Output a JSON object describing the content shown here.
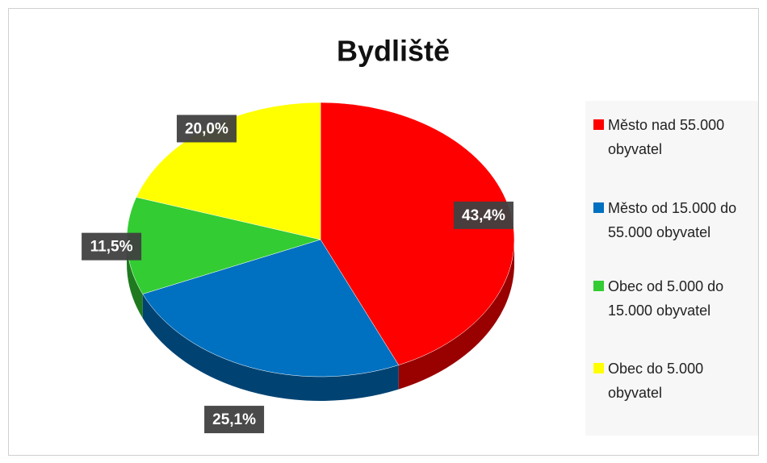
{
  "chart_data": {
    "type": "pie",
    "title": "Bydliště",
    "categories": [
      "Město nad 55.000 obyvatel",
      "Město od 15.000 do 55.000 obyvatel",
      "Obec od 5.000 do 15.000 obyvatel",
      "Obec do 5.000 obyvatel"
    ],
    "values": [
      43.4,
      25.1,
      11.5,
      20.0
    ],
    "value_labels": [
      "43,4%",
      "25,1%",
      "11,5%",
      "20,0%"
    ],
    "colors": [
      "#ff0000",
      "#0070c0",
      "#33cc33",
      "#ffff00"
    ],
    "legend": "right"
  }
}
